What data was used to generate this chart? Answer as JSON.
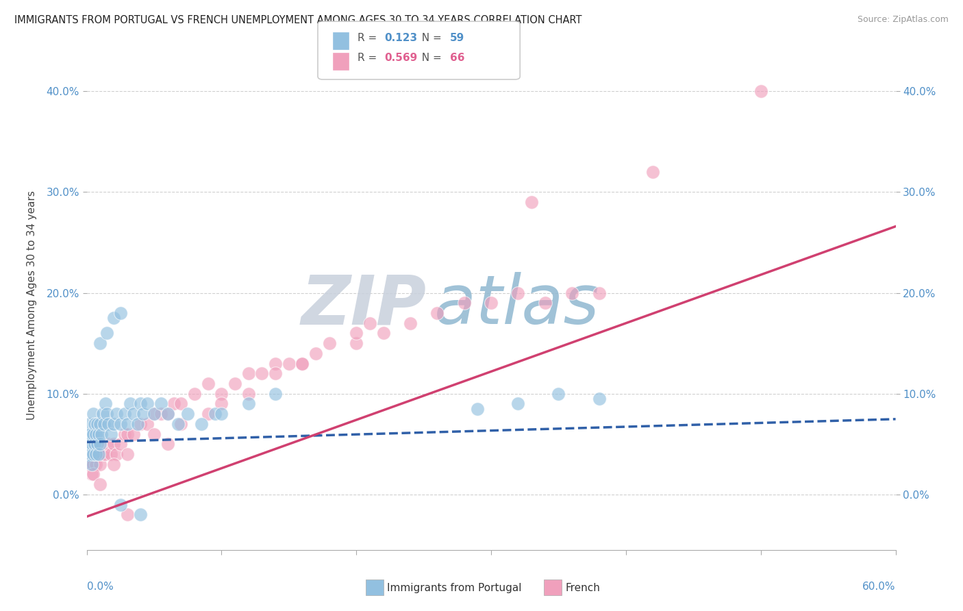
{
  "title": "IMMIGRANTS FROM PORTUGAL VS FRENCH UNEMPLOYMENT AMONG AGES 30 TO 34 YEARS CORRELATION CHART",
  "source": "Source: ZipAtlas.com",
  "ylabel": "Unemployment Among Ages 30 to 34 years",
  "legend_label1": "Immigrants from Portugal",
  "legend_label2": "French",
  "R1": "0.123",
  "N1": "59",
  "R2": "0.569",
  "N2": "66",
  "xlim": [
    0.0,
    0.6
  ],
  "ylim": [
    -0.055,
    0.43
  ],
  "yticks": [
    0.0,
    0.1,
    0.2,
    0.3,
    0.4
  ],
  "ytick_labels": [
    "0.0%",
    "10.0%",
    "20.0%",
    "30.0%",
    "40.0%"
  ],
  "color_blue": "#92c0e0",
  "color_pink": "#f0a0bc",
  "color_blue_text": "#5090c8",
  "color_pink_text": "#e06090",
  "color_line_blue": "#3060a8",
  "color_line_pink": "#d04070",
  "background_color": "#ffffff",
  "grid_color": "#d0d0d0",
  "blue_line_intercept": 0.052,
  "blue_line_slope": 0.038,
  "pink_line_intercept": -0.022,
  "pink_line_slope": 0.48,
  "blue_x": [
    0.001,
    0.001,
    0.002,
    0.002,
    0.003,
    0.003,
    0.004,
    0.004,
    0.005,
    0.005,
    0.005,
    0.006,
    0.006,
    0.007,
    0.007,
    0.008,
    0.008,
    0.009,
    0.009,
    0.01,
    0.01,
    0.011,
    0.012,
    0.013,
    0.014,
    0.015,
    0.016,
    0.018,
    0.02,
    0.022,
    0.025,
    0.028,
    0.03,
    0.032,
    0.035,
    0.038,
    0.04,
    0.042,
    0.045,
    0.05,
    0.055,
    0.06,
    0.068,
    0.075,
    0.085,
    0.095,
    0.01,
    0.015,
    0.02,
    0.025,
    0.1,
    0.12,
    0.14,
    0.025,
    0.04,
    0.29,
    0.32,
    0.35,
    0.38
  ],
  "blue_y": [
    0.04,
    0.06,
    0.05,
    0.07,
    0.04,
    0.06,
    0.03,
    0.05,
    0.06,
    0.08,
    0.04,
    0.05,
    0.07,
    0.04,
    0.06,
    0.05,
    0.07,
    0.04,
    0.06,
    0.05,
    0.07,
    0.06,
    0.08,
    0.07,
    0.09,
    0.08,
    0.07,
    0.06,
    0.07,
    0.08,
    0.07,
    0.08,
    0.07,
    0.09,
    0.08,
    0.07,
    0.09,
    0.08,
    0.09,
    0.08,
    0.09,
    0.08,
    0.07,
    0.08,
    0.07,
    0.08,
    0.15,
    0.16,
    0.175,
    0.18,
    0.08,
    0.09,
    0.1,
    -0.01,
    -0.02,
    0.085,
    0.09,
    0.1,
    0.095
  ],
  "pink_x": [
    0.001,
    0.002,
    0.003,
    0.004,
    0.005,
    0.006,
    0.007,
    0.008,
    0.009,
    0.01,
    0.012,
    0.014,
    0.016,
    0.018,
    0.02,
    0.022,
    0.025,
    0.028,
    0.03,
    0.035,
    0.04,
    0.045,
    0.05,
    0.055,
    0.06,
    0.065,
    0.07,
    0.08,
    0.09,
    0.1,
    0.11,
    0.12,
    0.13,
    0.14,
    0.15,
    0.16,
    0.17,
    0.18,
    0.2,
    0.22,
    0.24,
    0.26,
    0.28,
    0.3,
    0.32,
    0.34,
    0.36,
    0.38,
    0.005,
    0.01,
    0.02,
    0.03,
    0.05,
    0.07,
    0.09,
    0.12,
    0.16,
    0.21,
    0.03,
    0.06,
    0.1,
    0.14,
    0.2,
    0.5,
    0.33,
    0.42
  ],
  "pink_y": [
    0.03,
    0.04,
    0.03,
    0.02,
    0.03,
    0.04,
    0.03,
    0.05,
    0.04,
    0.03,
    0.04,
    0.04,
    0.05,
    0.04,
    0.05,
    0.04,
    0.05,
    0.06,
    0.06,
    0.06,
    0.07,
    0.07,
    0.08,
    0.08,
    0.08,
    0.09,
    0.09,
    0.1,
    0.11,
    0.1,
    0.11,
    0.12,
    0.12,
    0.13,
    0.13,
    0.13,
    0.14,
    0.15,
    0.15,
    0.16,
    0.17,
    0.18,
    0.19,
    0.19,
    0.2,
    0.19,
    0.2,
    0.2,
    0.02,
    0.01,
    0.03,
    0.04,
    0.06,
    0.07,
    0.08,
    0.1,
    0.13,
    0.17,
    -0.02,
    0.05,
    0.09,
    0.12,
    0.16,
    0.4,
    0.29,
    0.32
  ],
  "watermark_zip": "ZIP",
  "watermark_atlas": "atlas",
  "watermark_color_zip": "#c8d0dc",
  "watermark_color_atlas": "#90b8d0"
}
